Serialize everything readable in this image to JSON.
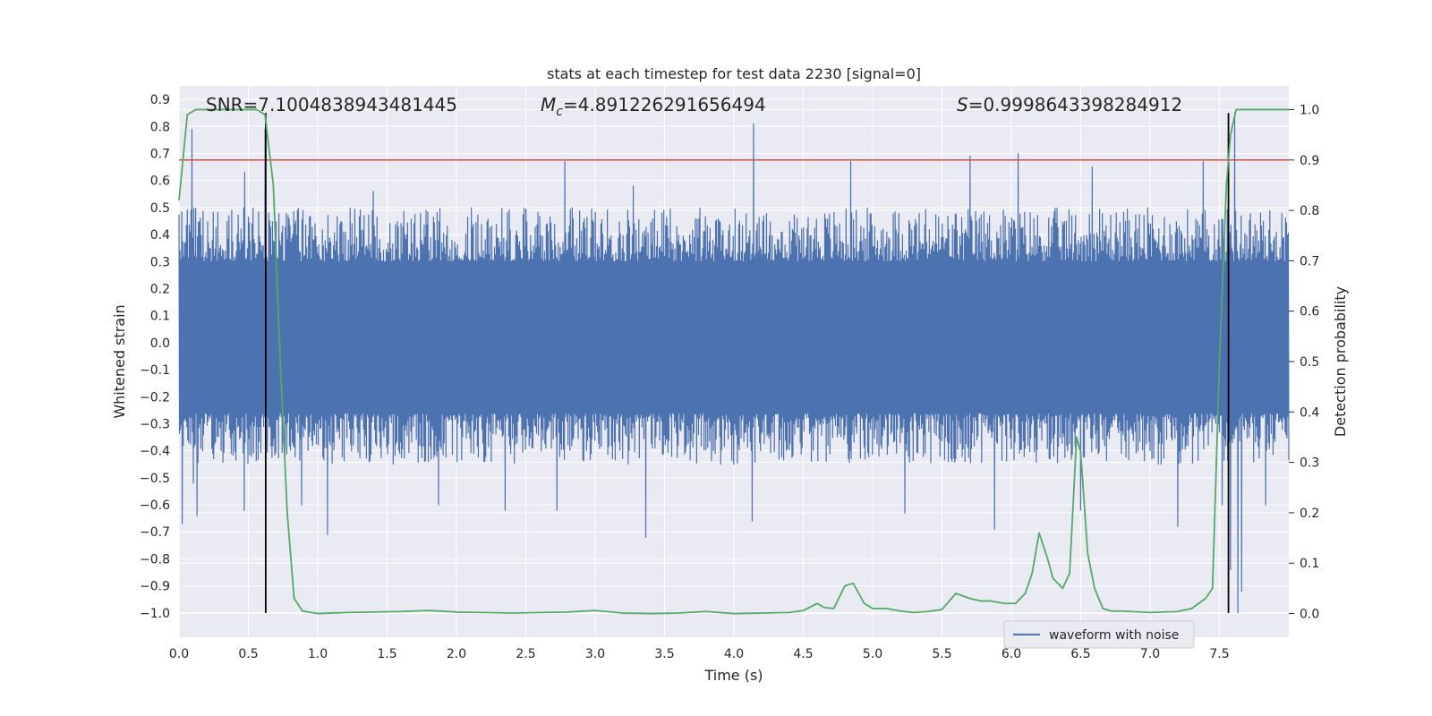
{
  "chart_data": {
    "type": "line",
    "title": "stats at each timestep for test data 2230 [signal=0]",
    "xlabel": "Time (s)",
    "ylabel": "Whitened strain",
    "y2label": "Detection probability",
    "xlim": [
      0,
      8
    ],
    "ylim": [
      -1.09,
      0.95
    ],
    "y2lim": [
      -0.047,
      1.047
    ],
    "xticks": [
      0.0,
      0.5,
      1.0,
      1.5,
      2.0,
      2.5,
      3.0,
      3.5,
      4.0,
      4.5,
      5.0,
      5.5,
      6.0,
      6.5,
      7.0,
      7.5
    ],
    "xtick_labels": [
      "0.0",
      "0.5",
      "1.0",
      "1.5",
      "2.0",
      "2.5",
      "3.0",
      "3.5",
      "4.0",
      "4.5",
      "5.0",
      "5.5",
      "6.0",
      "6.5",
      "7.0",
      "7.5"
    ],
    "yticks": [
      0.9,
      0.8,
      0.7,
      0.6,
      0.5,
      0.4,
      0.3,
      0.2,
      0.1,
      0.0,
      -0.1,
      -0.2,
      -0.3,
      -0.4,
      -0.5,
      -0.6,
      -0.7,
      -0.8,
      -0.9,
      -1.0
    ],
    "ytick_labels": [
      "0.9",
      "0.8",
      "0.7",
      "0.6",
      "0.5",
      "0.4",
      "0.3",
      "0.2",
      "0.1",
      "0.0",
      "−0.1",
      "−0.2",
      "−0.3",
      "−0.4",
      "−0.5",
      "−0.6",
      "−0.7",
      "−0.8",
      "−0.9",
      "−1.0"
    ],
    "y2ticks": [
      1.0,
      0.9,
      0.8,
      0.7,
      0.6,
      0.5,
      0.4,
      0.3,
      0.2,
      0.1,
      0.0
    ],
    "y2tick_labels": [
      "1.0",
      "0.9",
      "0.8",
      "0.7",
      "0.6",
      "0.5",
      "0.4",
      "0.3",
      "0.2",
      "0.1",
      "0.0"
    ],
    "grid": true,
    "legend": {
      "entries": [
        "waveform with noise"
      ],
      "position": "lower-right"
    },
    "annotations": {
      "snr": "SNR=7.1004838943481445",
      "mc_symbol": "M",
      "mc_sub": "c",
      "mc_value": "=4.891226291656494",
      "s_symbol": "S",
      "s_value": "=0.9998643398284912"
    },
    "threshold_line": {
      "axis": "y2",
      "value": 0.9,
      "color": "#c44e52"
    },
    "vertical_markers": [
      {
        "x": 0.625,
        "y_from": -1.0,
        "y_to": 0.85
      },
      {
        "x": 7.565,
        "y_from": -1.0,
        "y_to": 0.85
      }
    ],
    "series": [
      {
        "name": "waveform with noise",
        "axis": "y",
        "color": "#4c72b0",
        "style": "noise",
        "core_range": [
          -0.26,
          0.3
        ],
        "typical_range": [
          -0.45,
          0.5
        ],
        "peaks": [
          {
            "x": 0.02,
            "y": -0.67
          },
          {
            "x": 0.09,
            "y": 0.5
          },
          {
            "x": 0.1,
            "y": -0.52
          },
          {
            "x": 0.09,
            "y": 0.79
          },
          {
            "x": 0.13,
            "y": -0.64
          },
          {
            "x": 0.47,
            "y": -0.62
          },
          {
            "x": 0.47,
            "y": 0.63
          },
          {
            "x": 0.62,
            "y": -0.52
          },
          {
            "x": 0.62,
            "y": 0.79
          },
          {
            "x": 0.88,
            "y": -0.6
          },
          {
            "x": 1.07,
            "y": -0.71
          },
          {
            "x": 1.4,
            "y": 0.56
          },
          {
            "x": 1.87,
            "y": -0.6
          },
          {
            "x": 2.35,
            "y": -0.62
          },
          {
            "x": 2.72,
            "y": -0.62
          },
          {
            "x": 2.78,
            "y": 0.67
          },
          {
            "x": 3.36,
            "y": -0.72
          },
          {
            "x": 3.27,
            "y": 0.58
          },
          {
            "x": 4.14,
            "y": 0.81
          },
          {
            "x": 4.13,
            "y": -0.66
          },
          {
            "x": 4.84,
            "y": 0.67
          },
          {
            "x": 5.23,
            "y": -0.63
          },
          {
            "x": 5.7,
            "y": 0.69
          },
          {
            "x": 5.88,
            "y": -0.69
          },
          {
            "x": 6.05,
            "y": 0.7
          },
          {
            "x": 6.58,
            "y": 0.65
          },
          {
            "x": 6.5,
            "y": -0.62
          },
          {
            "x": 7.2,
            "y": -0.68
          },
          {
            "x": 7.38,
            "y": 0.67
          },
          {
            "x": 7.52,
            "y": -0.6
          },
          {
            "x": 7.58,
            "y": -0.84
          },
          {
            "x": 7.63,
            "y": -1.0
          },
          {
            "x": 7.66,
            "y": -0.92
          },
          {
            "x": 7.61,
            "y": 0.85
          },
          {
            "x": 7.83,
            "y": -0.6
          }
        ]
      },
      {
        "name": "detection probability",
        "axis": "y2",
        "color": "#55a868",
        "x": [
          0.0,
          0.06,
          0.12,
          0.2,
          0.3,
          0.4,
          0.5,
          0.56,
          0.62,
          0.68,
          0.73,
          0.78,
          0.83,
          0.89,
          1.0,
          1.2,
          1.4,
          1.6,
          1.8,
          2.0,
          2.2,
          2.4,
          2.6,
          2.8,
          3.0,
          3.2,
          3.4,
          3.6,
          3.8,
          4.0,
          4.2,
          4.4,
          4.5,
          4.6,
          4.65,
          4.72,
          4.8,
          4.86,
          4.94,
          5.0,
          5.1,
          5.2,
          5.3,
          5.4,
          5.5,
          5.6,
          5.7,
          5.78,
          5.85,
          5.95,
          6.03,
          6.1,
          6.15,
          6.2,
          6.26,
          6.3,
          6.37,
          6.42,
          6.47,
          6.5,
          6.55,
          6.6,
          6.66,
          6.72,
          6.8,
          7.0,
          7.2,
          7.3,
          7.35,
          7.4,
          7.45,
          7.5,
          7.55,
          7.58,
          7.62,
          7.68,
          7.75,
          7.85,
          8.0
        ],
        "y": [
          0.82,
          0.99,
          1.0,
          1.0,
          1.0,
          1.0,
          1.0,
          1.0,
          0.99,
          0.85,
          0.5,
          0.2,
          0.03,
          0.005,
          0.0,
          0.002,
          0.003,
          0.004,
          0.006,
          0.003,
          0.002,
          0.001,
          0.002,
          0.003,
          0.006,
          0.001,
          0.0,
          0.001,
          0.004,
          0.0,
          0.001,
          0.002,
          0.006,
          0.02,
          0.012,
          0.01,
          0.055,
          0.06,
          0.02,
          0.01,
          0.01,
          0.005,
          0.002,
          0.004,
          0.008,
          0.04,
          0.03,
          0.025,
          0.025,
          0.02,
          0.02,
          0.04,
          0.08,
          0.16,
          0.11,
          0.07,
          0.05,
          0.08,
          0.35,
          0.32,
          0.12,
          0.05,
          0.01,
          0.005,
          0.005,
          0.002,
          0.004,
          0.01,
          0.02,
          0.03,
          0.05,
          0.5,
          0.85,
          0.95,
          1.0,
          1.0,
          1.0,
          1.0,
          1.0
        ]
      }
    ]
  }
}
